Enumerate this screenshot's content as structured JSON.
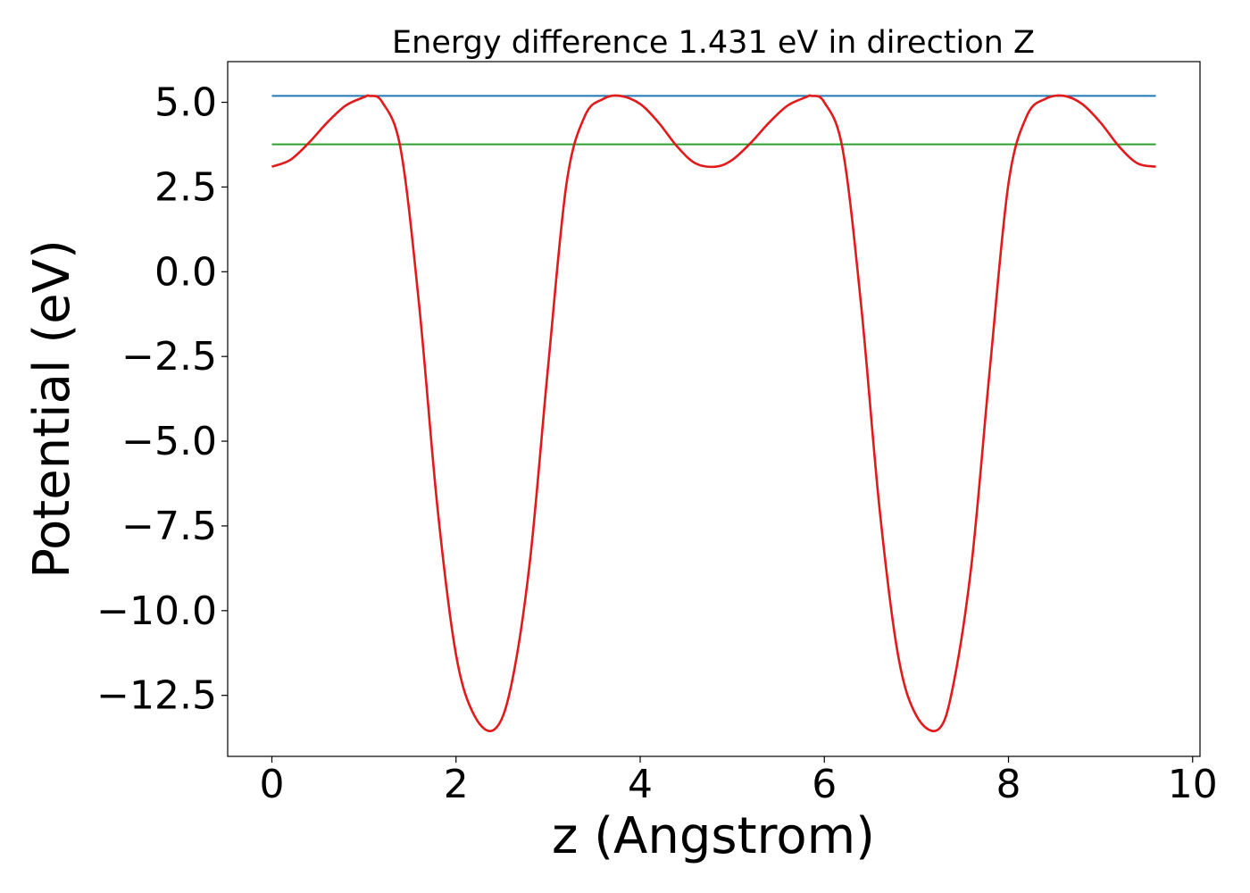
{
  "chart_data": {
    "type": "line",
    "title": "Energy difference 1.431 eV in direction Z",
    "xlabel": "z (Angstrom)",
    "ylabel": "Potential (eV)",
    "xlim": [
      -0.48,
      10.08
    ],
    "ylim": [
      -14.3,
      6.2
    ],
    "xticks": [
      0,
      2,
      4,
      6,
      8,
      10
    ],
    "xtick_labels": [
      "0",
      "2",
      "4",
      "6",
      "8",
      "10"
    ],
    "yticks": [
      5.0,
      2.5,
      0.0,
      -2.5,
      -5.0,
      -7.5,
      -10.0,
      -12.5
    ],
    "ytick_labels": [
      "5.0",
      "2.5",
      "0.0",
      "−2.5",
      "−5.0",
      "−7.5",
      "−10.0",
      "−12.5"
    ],
    "grid": false,
    "legend": "none",
    "series": [
      {
        "kind": "hline",
        "color": "#1f77b4",
        "x": [
          0,
          9.6
        ],
        "values": [
          5.19,
          5.19
        ]
      },
      {
        "kind": "hline",
        "color": "#2ca02c",
        "x": [
          0,
          9.6
        ],
        "values": [
          3.76,
          3.76
        ]
      },
      {
        "kind": "curve",
        "color": "#e31a1c",
        "x": [
          0,
          0.2,
          0.4,
          0.6,
          0.8,
          1.0,
          1.06,
          1.2,
          1.4,
          1.6,
          1.8,
          2.0,
          2.2,
          2.42,
          2.6,
          2.8,
          3.0,
          3.2,
          3.4,
          3.6,
          3.78,
          4.0,
          4.2,
          4.4,
          4.6,
          4.82,
          5.0,
          5.2,
          5.4,
          5.6,
          5.8,
          5.86,
          6.0,
          6.2,
          6.4,
          6.6,
          6.8,
          7.0,
          7.24,
          7.4,
          7.6,
          7.8,
          8.0,
          8.2,
          8.4,
          8.6,
          8.8,
          9.0,
          9.2,
          9.4,
          9.6
        ],
        "values": [
          3.1,
          3.3,
          3.8,
          4.4,
          4.9,
          5.15,
          5.19,
          5.0,
          3.6,
          -1.0,
          -7.0,
          -11.3,
          -13.1,
          -13.5,
          -12.2,
          -8.6,
          -2.8,
          2.6,
          4.6,
          5.1,
          5.19,
          4.95,
          4.4,
          3.7,
          3.2,
          3.1,
          3.3,
          3.8,
          4.4,
          4.9,
          5.15,
          5.19,
          5.0,
          3.6,
          -1.0,
          -7.0,
          -11.3,
          -13.1,
          -13.5,
          -12.2,
          -8.6,
          -2.8,
          2.6,
          4.6,
          5.1,
          5.19,
          4.95,
          4.4,
          3.7,
          3.2,
          3.1
        ]
      }
    ]
  }
}
